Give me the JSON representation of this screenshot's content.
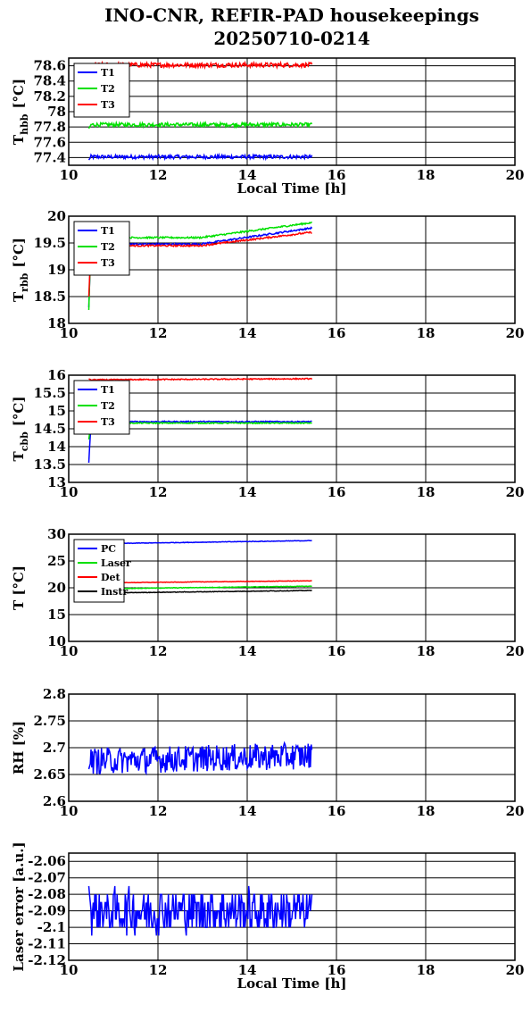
{
  "title_line1": "INO-CNR, REFIR-PAD housekeepings",
  "title_line2": "20250710-0214",
  "chart_data": [
    {
      "type": "line",
      "ylabel": "T",
      "ylabel_sub": "hbb",
      "ylabel_unit": "[°C]",
      "xlabel": "Local Time [h]",
      "xlim": [
        10,
        20
      ],
      "ylim": [
        77.3,
        78.7
      ],
      "xticks": [
        "10",
        "12",
        "14",
        "16",
        "18",
        "20"
      ],
      "yticks": [
        "77.4",
        "77.6",
        "77.8",
        "78",
        "78.2",
        "78.4",
        "78.6"
      ],
      "ytick_values": [
        77.4,
        77.6,
        77.8,
        78.0,
        78.2,
        78.4,
        78.6
      ],
      "legend_position": "top-left",
      "x_range": [
        10.45,
        15.45
      ],
      "series": [
        {
          "name": "T1",
          "color": "#0000ff",
          "base": 77.41,
          "noise": 0.025,
          "start": 77.37
        },
        {
          "name": "T2",
          "color": "#00e000",
          "base": 77.83,
          "noise": 0.025,
          "start": 77.78
        },
        {
          "name": "T3",
          "color": "#ff0000",
          "base": 78.61,
          "noise": 0.03,
          "start": 78.61
        }
      ]
    },
    {
      "type": "line",
      "ylabel": "T",
      "ylabel_sub": "rbb",
      "ylabel_unit": "[°C]",
      "xlabel": "",
      "xlim": [
        10,
        20
      ],
      "ylim": [
        18,
        20
      ],
      "xticks": [
        "10",
        "12",
        "14",
        "16",
        "18",
        "20"
      ],
      "yticks": [
        "18",
        "18.5",
        "19",
        "19.5",
        "20"
      ],
      "ytick_values": [
        18,
        18.5,
        19,
        19.5,
        20
      ],
      "legend_position": "top-left",
      "x_range": [
        10.45,
        15.45
      ],
      "series": [
        {
          "name": "T1",
          "color": "#0000ff",
          "base": 19.48,
          "end": 19.78,
          "noise": 0.015,
          "start": 18.3
        },
        {
          "name": "T2",
          "color": "#00e000",
          "base": 19.6,
          "end": 19.88,
          "noise": 0.015,
          "start": 18.25
        },
        {
          "name": "T3",
          "color": "#ff0000",
          "base": 19.45,
          "end": 19.7,
          "noise": 0.015,
          "start": 18.5
        }
      ]
    },
    {
      "type": "line",
      "ylabel": "T",
      "ylabel_sub": "cbb",
      "ylabel_unit": "[°C]",
      "xlabel": "",
      "xlim": [
        10,
        20
      ],
      "ylim": [
        13,
        16
      ],
      "xticks": [
        "10",
        "12",
        "14",
        "16",
        "18",
        "20"
      ],
      "yticks": [
        "13",
        "13.5",
        "14",
        "14.5",
        "15",
        "15.5",
        "16"
      ],
      "ytick_values": [
        13,
        13.5,
        14,
        14.5,
        15,
        15.5,
        16
      ],
      "legend_position": "top-left",
      "x_range": [
        10.45,
        15.45
      ],
      "series": [
        {
          "name": "T1",
          "color": "#0000ff",
          "base": 14.7,
          "noise": 0.015,
          "start": 13.55
        },
        {
          "name": "T2",
          "color": "#00e000",
          "base": 14.66,
          "noise": 0.015,
          "start": 14.2
        },
        {
          "name": "T3",
          "color": "#ff0000",
          "base": 15.87,
          "end": 15.9,
          "noise": 0.015,
          "start": 15.9
        }
      ]
    },
    {
      "type": "line",
      "ylabel": "T [°C]",
      "ylabel_sub": "",
      "ylabel_unit": "",
      "xlabel": "",
      "xlim": [
        10,
        20
      ],
      "ylim": [
        10,
        30
      ],
      "xticks": [
        "10",
        "12",
        "14",
        "16",
        "18",
        "20"
      ],
      "yticks": [
        "10",
        "15",
        "20",
        "25",
        "30"
      ],
      "ytick_values": [
        10,
        15,
        20,
        25,
        30
      ],
      "legend_position": "top-left",
      "x_range": [
        10.45,
        15.45
      ],
      "series": [
        {
          "name": "PC",
          "color": "#0000ff",
          "base": 28.2,
          "end": 28.8,
          "noise": 0.05,
          "start": 28.2
        },
        {
          "name": "Laser",
          "color": "#00e000",
          "base": 19.8,
          "end": 20.3,
          "noise": 0.05,
          "start": 19.8
        },
        {
          "name": "Det",
          "color": "#ff0000",
          "base": 20.9,
          "end": 21.3,
          "noise": 0.04,
          "start": 20.9
        },
        {
          "name": "Instr",
          "color": "#000000",
          "base": 19.0,
          "end": 19.5,
          "noise": 0.05,
          "start": 19.0
        }
      ]
    },
    {
      "type": "line",
      "ylabel": "RH [%]",
      "ylabel_sub": "",
      "ylabel_unit": "",
      "xlabel": "",
      "xlim": [
        10,
        20
      ],
      "ylim": [
        2.6,
        2.8
      ],
      "xticks": [
        "10",
        "12",
        "14",
        "16",
        "18",
        "20"
      ],
      "yticks": [
        "2.6",
        "2.65",
        "2.7",
        "2.75",
        "2.8"
      ],
      "ytick_values": [
        2.6,
        2.65,
        2.7,
        2.75,
        2.8
      ],
      "legend_position": "none",
      "x_range": [
        10.45,
        15.45
      ],
      "series": [
        {
          "color": "#0000ff",
          "base": 2.675,
          "end": 2.685,
          "noise": 0.025,
          "start": 2.66
        }
      ]
    },
    {
      "type": "line",
      "ylabel": "Laser error [a.u.]",
      "ylabel_sub": "",
      "ylabel_unit": "",
      "xlabel": "Local Time [h]",
      "xlim": [
        10,
        20
      ],
      "ylim": [
        -2.12,
        -2.055
      ],
      "xticks": [
        "10",
        "12",
        "14",
        "16",
        "18",
        "20"
      ],
      "yticks": [
        "-2.12",
        "-2.11",
        "-2.1",
        "-2.09",
        "-2.08",
        "-2.07",
        "-2.06"
      ],
      "ytick_values": [
        -2.12,
        -2.11,
        -2.1,
        -2.09,
        -2.08,
        -2.07,
        -2.06
      ],
      "legend_position": "none",
      "x_range": [
        10.45,
        15.45
      ],
      "series": [
        {
          "color": "#0000ff",
          "base": -2.09,
          "noise": 0.013,
          "start": -2.075,
          "quantize": 0.005
        }
      ]
    }
  ]
}
